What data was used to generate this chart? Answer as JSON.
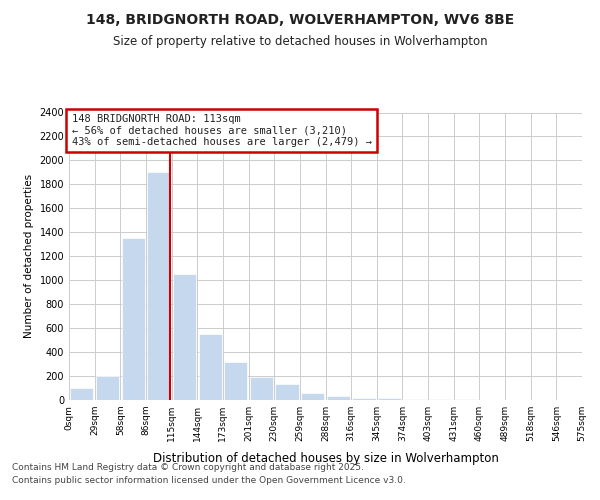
{
  "title1": "148, BRIDGNORTH ROAD, WOLVERHAMPTON, WV6 8BE",
  "title2": "Size of property relative to detached houses in Wolverhampton",
  "xlabel": "Distribution of detached houses by size in Wolverhampton",
  "ylabel": "Number of detached properties",
  "footnote1": "Contains HM Land Registry data © Crown copyright and database right 2025.",
  "footnote2": "Contains public sector information licensed under the Open Government Licence v3.0.",
  "annotation_line1": "148 BRIDGNORTH ROAD: 113sqm",
  "annotation_line2": "← 56% of detached houses are smaller (3,210)",
  "annotation_line3": "43% of semi-detached houses are larger (2,479) →",
  "subject_bar_index": 3,
  "bins": [
    "0sqm",
    "29sqm",
    "58sqm",
    "86sqm",
    "115sqm",
    "144sqm",
    "173sqm",
    "201sqm",
    "230sqm",
    "259sqm",
    "288sqm",
    "316sqm",
    "345sqm",
    "374sqm",
    "403sqm",
    "431sqm",
    "460sqm",
    "489sqm",
    "518sqm",
    "546sqm",
    "575sqm"
  ],
  "values": [
    100,
    200,
    1350,
    1900,
    1050,
    550,
    320,
    190,
    130,
    60,
    30,
    20,
    15,
    12,
    8,
    6,
    4,
    3,
    2,
    1
  ],
  "bar_color": "#c5d8ed",
  "grid_color": "#cccccc",
  "background_color": "#ffffff",
  "annotation_box_facecolor": "#ffffff",
  "annotation_border_color": "#cc0000",
  "subject_line_color": "#cc0000",
  "ylim": [
    0,
    2400
  ],
  "yticks": [
    0,
    200,
    400,
    600,
    800,
    1000,
    1200,
    1400,
    1600,
    1800,
    2000,
    2200,
    2400
  ]
}
